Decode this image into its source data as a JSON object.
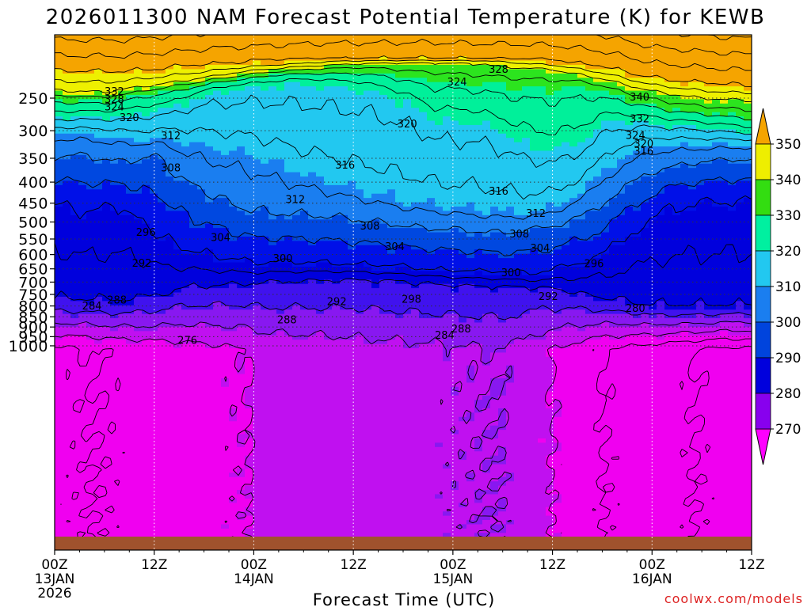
{
  "chart_data": {
    "type": "contour",
    "title": "2026011300 NAM Forecast Potential Temperature (K) for KEWB",
    "xlabel": "Forecast Time (UTC)",
    "ylabel": "",
    "credit": "coolwx.com/models",
    "x_ticks": [
      {
        "label": "00Z",
        "sub": "13JAN",
        "sub2": "2026",
        "hour": 0
      },
      {
        "label": "12Z",
        "sub": "",
        "sub2": "",
        "hour": 12
      },
      {
        "label": "00Z",
        "sub": "14JAN",
        "sub2": "",
        "hour": 24
      },
      {
        "label": "12Z",
        "sub": "",
        "sub2": "",
        "hour": 36
      },
      {
        "label": "00Z",
        "sub": "15JAN",
        "sub2": "",
        "hour": 48
      },
      {
        "label": "12Z",
        "sub": "",
        "sub2": "",
        "hour": 60
      },
      {
        "label": "00Z",
        "sub": "16JAN",
        "sub2": "",
        "hour": 72
      },
      {
        "label": "12Z",
        "sub": "",
        "sub2": "",
        "hour": 84
      }
    ],
    "x_range_hours": [
      0,
      84
    ],
    "y_ticks": [
      250,
      300,
      350,
      400,
      450,
      500,
      550,
      600,
      650,
      700,
      750,
      800,
      850,
      900,
      950,
      1000
    ],
    "y_range_hpa": [
      200,
      1030
    ],
    "colorbar": {
      "levels": [
        270,
        280,
        290,
        300,
        310,
        320,
        330,
        340,
        350
      ],
      "colors": [
        "#ff00ff",
        "#cc00ee",
        "#8800ee",
        "#0000dd",
        "#0044dd",
        "#1a7ef0",
        "#22c8f0",
        "#00f0a0",
        "#33dd11",
        "#eeee00",
        "#f5a400"
      ]
    },
    "band_colors": [
      "#f000f0",
      "#c010f0",
      "#8818f0",
      "#4012ee",
      "#0000dd",
      "#0010e8",
      "#0048e0",
      "#1a7ef0",
      "#22c8f0",
      "#00f09a",
      "#2ce41e",
      "#eef000",
      "#f5a400"
    ],
    "band_thresholds_k": [
      280,
      284,
      288,
      292,
      300,
      304,
      308,
      314,
      322,
      330,
      336,
      344
    ],
    "contour_labels": [
      {
        "text": "328",
        "hour": 53.5,
        "p": 212
      },
      {
        "text": "324",
        "hour": 48.5,
        "p": 228
      },
      {
        "text": "332",
        "hour": 7.2,
        "p": 240
      },
      {
        "text": "328",
        "hour": 7.2,
        "p": 251
      },
      {
        "text": "324",
        "hour": 7.2,
        "p": 262
      },
      {
        "text": "320",
        "hour": 9.0,
        "p": 278
      },
      {
        "text": "320",
        "hour": 42.5,
        "p": 288
      },
      {
        "text": "340",
        "hour": 70.5,
        "p": 248
      },
      {
        "text": "332",
        "hour": 70.5,
        "p": 280
      },
      {
        "text": "312",
        "hour": 14.0,
        "p": 308
      },
      {
        "text": "324",
        "hour": 70.0,
        "p": 307
      },
      {
        "text": "320",
        "hour": 71.0,
        "p": 322
      },
      {
        "text": "316",
        "hour": 71.0,
        "p": 336
      },
      {
        "text": "308",
        "hour": 14.0,
        "p": 368
      },
      {
        "text": "316",
        "hour": 35.0,
        "p": 363
      },
      {
        "text": "316",
        "hour": 53.5,
        "p": 420
      },
      {
        "text": "312",
        "hour": 29.0,
        "p": 440
      },
      {
        "text": "312",
        "hour": 58.0,
        "p": 475
      },
      {
        "text": "308",
        "hour": 38.0,
        "p": 510
      },
      {
        "text": "296",
        "hour": 11.0,
        "p": 529
      },
      {
        "text": "304",
        "hour": 20.0,
        "p": 544
      },
      {
        "text": "308",
        "hour": 56.0,
        "p": 533
      },
      {
        "text": "304",
        "hour": 41.0,
        "p": 573
      },
      {
        "text": "304",
        "hour": 58.5,
        "p": 577
      },
      {
        "text": "292",
        "hour": 10.5,
        "p": 628
      },
      {
        "text": "300",
        "hour": 27.5,
        "p": 612
      },
      {
        "text": "296",
        "hour": 65.0,
        "p": 630
      },
      {
        "text": "300",
        "hour": 55.0,
        "p": 662
      },
      {
        "text": "292",
        "hour": 59.5,
        "p": 757
      },
      {
        "text": "288",
        "hour": 7.5,
        "p": 772
      },
      {
        "text": "292",
        "hour": 34.0,
        "p": 778
      },
      {
        "text": "298",
        "hour": 43.0,
        "p": 768
      },
      {
        "text": "284",
        "hour": 4.5,
        "p": 798
      },
      {
        "text": "280",
        "hour": 70.0,
        "p": 809
      },
      {
        "text": "288",
        "hour": 28.0,
        "p": 862
      },
      {
        "text": "288",
        "hour": 49.0,
        "p": 908
      },
      {
        "text": "284",
        "hour": 47.0,
        "p": 941
      },
      {
        "text": "276",
        "hour": 16.0,
        "p": 968
      }
    ]
  }
}
